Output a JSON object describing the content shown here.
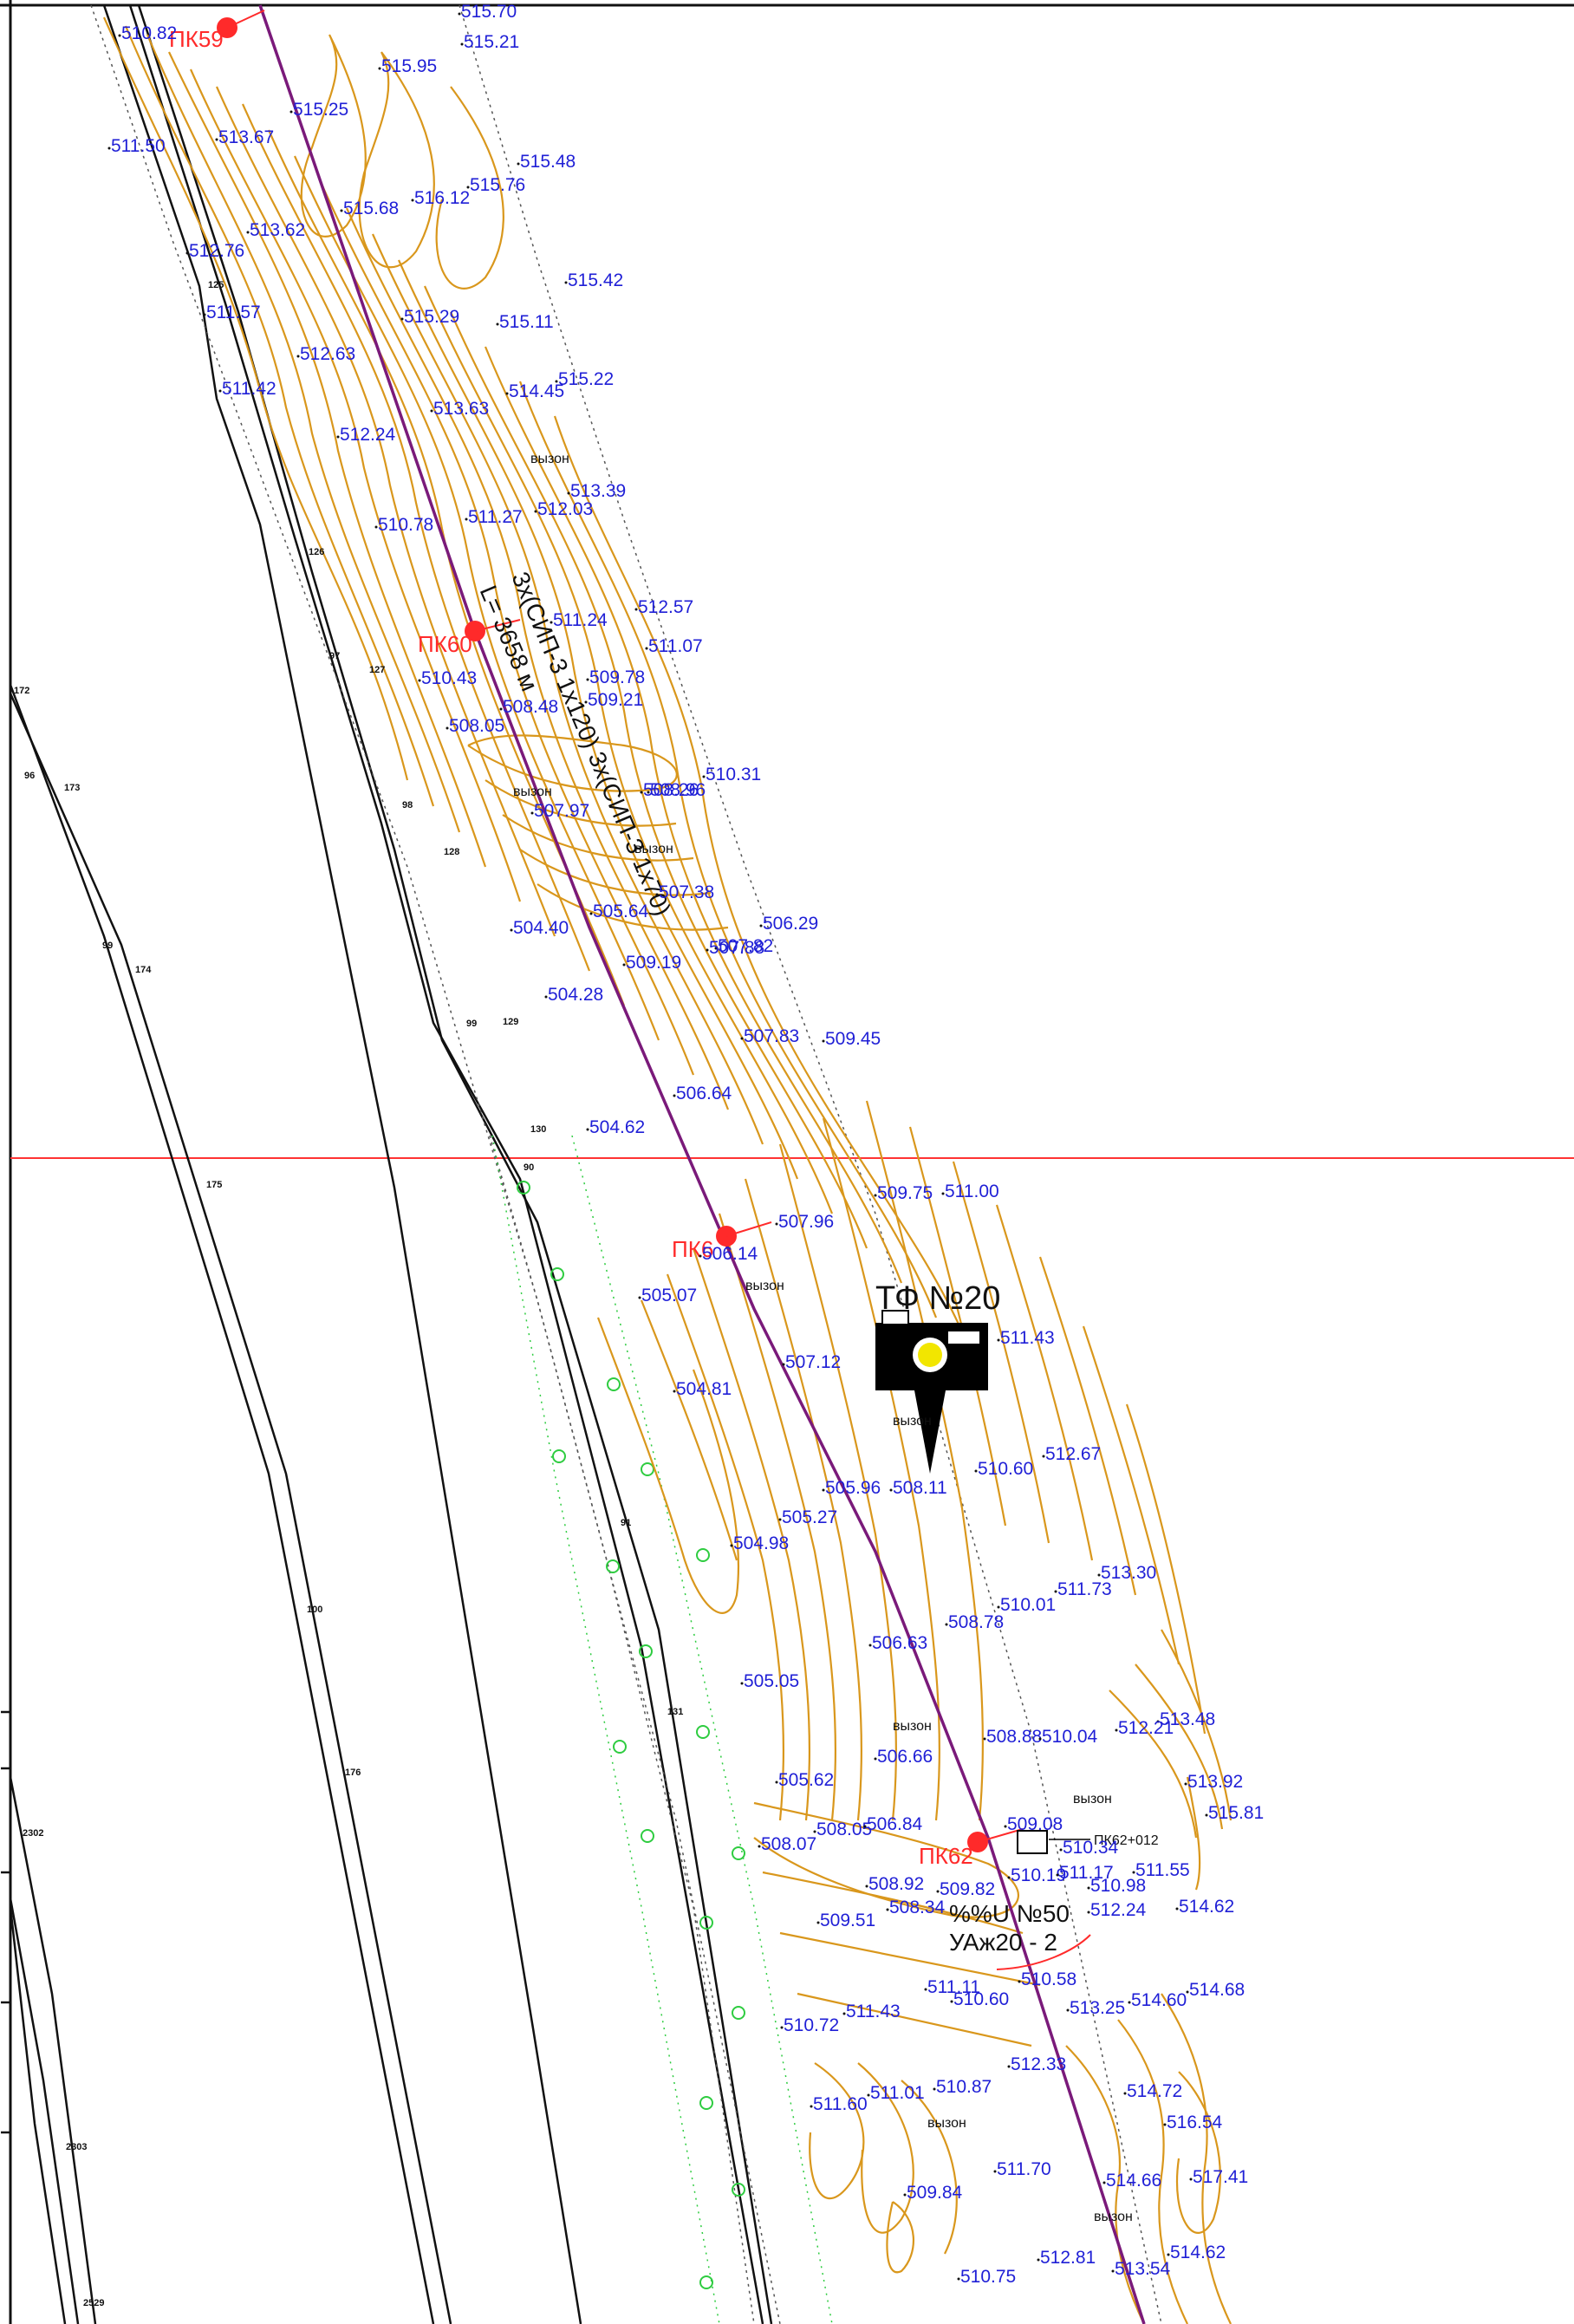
{
  "map": {
    "pickets": [
      "ПК59",
      "ПК60",
      "ПК6",
      "ПК62"
    ],
    "cable_label": "3х(СИП-3 1х120), 3х(СИП-3 1х70), L= 3658 м",
    "cable_label_line1": "3х(СИП-3 1х120) 3х(СИП-3 1х70)",
    "cable_label_line2": "L= 3658 м",
    "photo_point": {
      "label": "ТФ №20",
      "number": "20"
    },
    "support": {
      "label1": "%%U №50",
      "label2": "УАж20 - 2",
      "picket_offset": "ПК62+012"
    },
    "terrain_notes": [
      "вызон",
      "вызон",
      "вызон",
      "вызон",
      "вызон",
      "вызон",
      "вызон",
      "вызон",
      "вызон"
    ],
    "parcel_numbers": [
      "125",
      "126",
      "127",
      "128",
      "129",
      "130",
      "97",
      "98",
      "99",
      "90",
      "91",
      "131",
      "172",
      "173",
      "174",
      "175",
      "176",
      "96",
      "99",
      "100",
      "2302",
      "2303",
      "2529"
    ],
    "spot_heights": [
      "510.82",
      "515.70",
      "515.21",
      "515.95",
      "515.25",
      "511.50",
      "513.67",
      "515.48",
      "515.76",
      "515.68",
      "516.12",
      "513.62",
      "512.76",
      "515.42",
      "511.57",
      "515.29",
      "515.11",
      "512.63",
      "511.42",
      "514.45",
      "515.22",
      "513.63",
      "512.24",
      "513.39",
      "510.78",
      "511.27",
      "512.03",
      "512.57",
      "511.24",
      "511.07",
      "510.43",
      "509.78",
      "509.21",
      "508.05",
      "508.48",
      "510.31",
      "508.26",
      "508.96",
      "507.97",
      "507.38",
      "505.64",
      "504.40",
      "507.82",
      "509.19",
      "506.29",
      "507.88",
      "504.28",
      "507.83",
      "509.45",
      "506.64",
      "504.62",
      "509.75",
      "511.00",
      "507.96",
      "506.14",
      "505.07",
      "507.12",
      "511.43",
      "504.81",
      "510.60",
      "512.67",
      "505.96",
      "508.11",
      "505.27",
      "504.98",
      "513.30",
      "511.73",
      "510.01",
      "508.78",
      "506.63",
      "505.05",
      "513.48",
      "512.21",
      "508.88",
      "510.04",
      "506.66",
      "505.62",
      "513.92",
      "515.81",
      "508.07",
      "508.05",
      "506.84",
      "509.08",
      "510.34",
      "510.19",
      "511.17",
      "511.55",
      "508.92",
      "509.82",
      "510.98",
      "509.51",
      "508.34",
      "512.24",
      "514.62",
      "511.11",
      "510.58",
      "510.60",
      "513.25",
      "514.60",
      "514.68",
      "510.72",
      "511.43",
      "512.33",
      "511.60",
      "511.01",
      "510.87",
      "514.72",
      "516.54",
      "509.84",
      "511.70",
      "514.66",
      "517.41",
      "510.75",
      "512.81",
      "513.54",
      "514.62"
    ]
  },
  "colors": {
    "contour": "#d9971c",
    "spot_height": "#1f1fd6",
    "route": "#7a1a7a",
    "picket": "#ff2a2a",
    "boundary": "#111111",
    "grid": "#ff3333",
    "green_markers": "#2ecc40"
  }
}
